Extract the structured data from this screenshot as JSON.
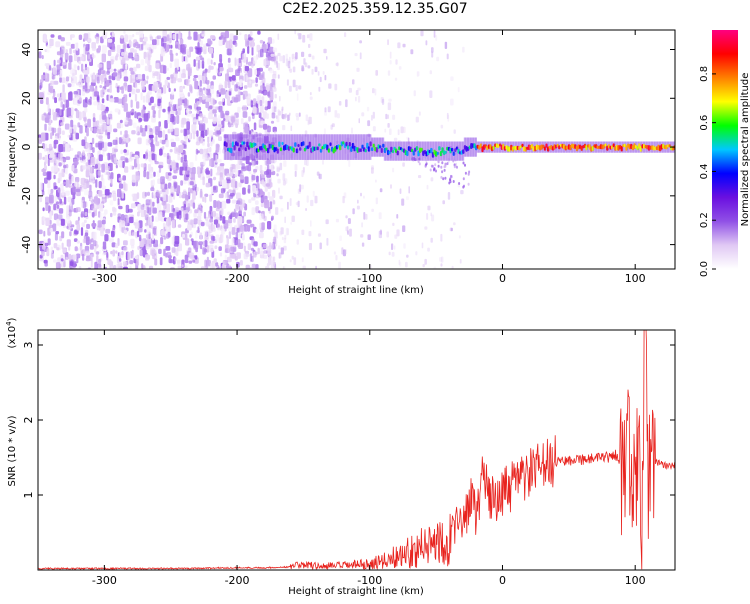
{
  "title": "C2E2.2025.359.12.35.G07",
  "chart_data": [
    {
      "type": "heatmap",
      "xlabel": "Height of straight line (km)",
      "ylabel": "Frequency (Hz)",
      "xlim": [
        -350,
        130
      ],
      "ylim": [
        -50,
        48
      ],
      "x_ticks": [
        -300,
        -200,
        -100,
        0,
        100
      ],
      "y_ticks": [
        -40,
        -20,
        0,
        20,
        40
      ],
      "colorbar": {
        "label": "Normalized spectral amplitude",
        "range": [
          0,
          0.98
        ],
        "ticks": [
          "0.0",
          "0.2",
          "0.4",
          "0.6",
          "0.8"
        ],
        "colors": [
          "#ffffff",
          "#e0c8f4",
          "#9050e6",
          "#6a10e0",
          "#0000ff",
          "#00c8ff",
          "#00ff00",
          "#ffff00",
          "#ff8000",
          "#ff0000",
          "#ff0080"
        ]
      },
      "description_regions": [
        {
          "x_range": [
            -350,
            -173
          ],
          "freq_range": [
            -50,
            48
          ],
          "amplitude": 0.08,
          "pattern": "broadband scattered speckle"
        },
        {
          "x_range": [
            -173,
            -30
          ],
          "freq_range": [
            -50,
            48
          ],
          "amplitude": 0.01,
          "pattern": "faint sparse speckle"
        },
        {
          "x_range": [
            -210,
            130
          ],
          "freq_center": 0,
          "amplitude": 0.6,
          "pattern": "narrow carrier line, centered near 0 Hz"
        },
        {
          "x_range": [
            -20,
            130
          ],
          "freq_center": 0,
          "amplitude": 0.95,
          "pattern": "strongest carrier amplitude"
        }
      ]
    },
    {
      "type": "line",
      "xlabel": "Height of straight line (km)",
      "ylabel": "SNR (10 * v/v)",
      "scale_label": "(x10",
      "scale_exponent": "4",
      "xlim": [
        -350,
        130
      ],
      "ylim": [
        0,
        3.2
      ],
      "x_ticks": [
        -300,
        -200,
        -100,
        0,
        100
      ],
      "y_ticks": [
        1,
        2,
        3
      ],
      "color": "#e8231e",
      "series": [
        {
          "x": [
            -350,
            -300,
            -250,
            -200,
            -180,
            -160,
            -150,
            -140,
            -120,
            -100,
            -90,
            -80,
            -70,
            -60,
            -50,
            -40,
            -30,
            -25,
            -20,
            -15,
            -10,
            -5,
            0,
            10,
            20,
            30,
            40,
            50,
            60,
            70,
            80,
            85,
            90,
            95,
            100,
            103,
            105,
            107,
            110,
            115,
            120,
            130
          ],
          "y": [
            0.02,
            0.02,
            0.02,
            0.03,
            0.03,
            0.04,
            0.08,
            0.05,
            0.06,
            0.08,
            0.12,
            0.18,
            0.25,
            0.3,
            0.38,
            0.45,
            0.55,
            0.95,
            0.7,
            1.3,
            0.9,
            1.0,
            1.0,
            1.15,
            1.28,
            1.38,
            1.45,
            1.47,
            1.48,
            1.48,
            1.5,
            1.55,
            1.3,
            1.6,
            0.8,
            2.5,
            0.3,
            3.2,
            1.2,
            1.45,
            1.4,
            1.4
          ]
        }
      ]
    }
  ]
}
